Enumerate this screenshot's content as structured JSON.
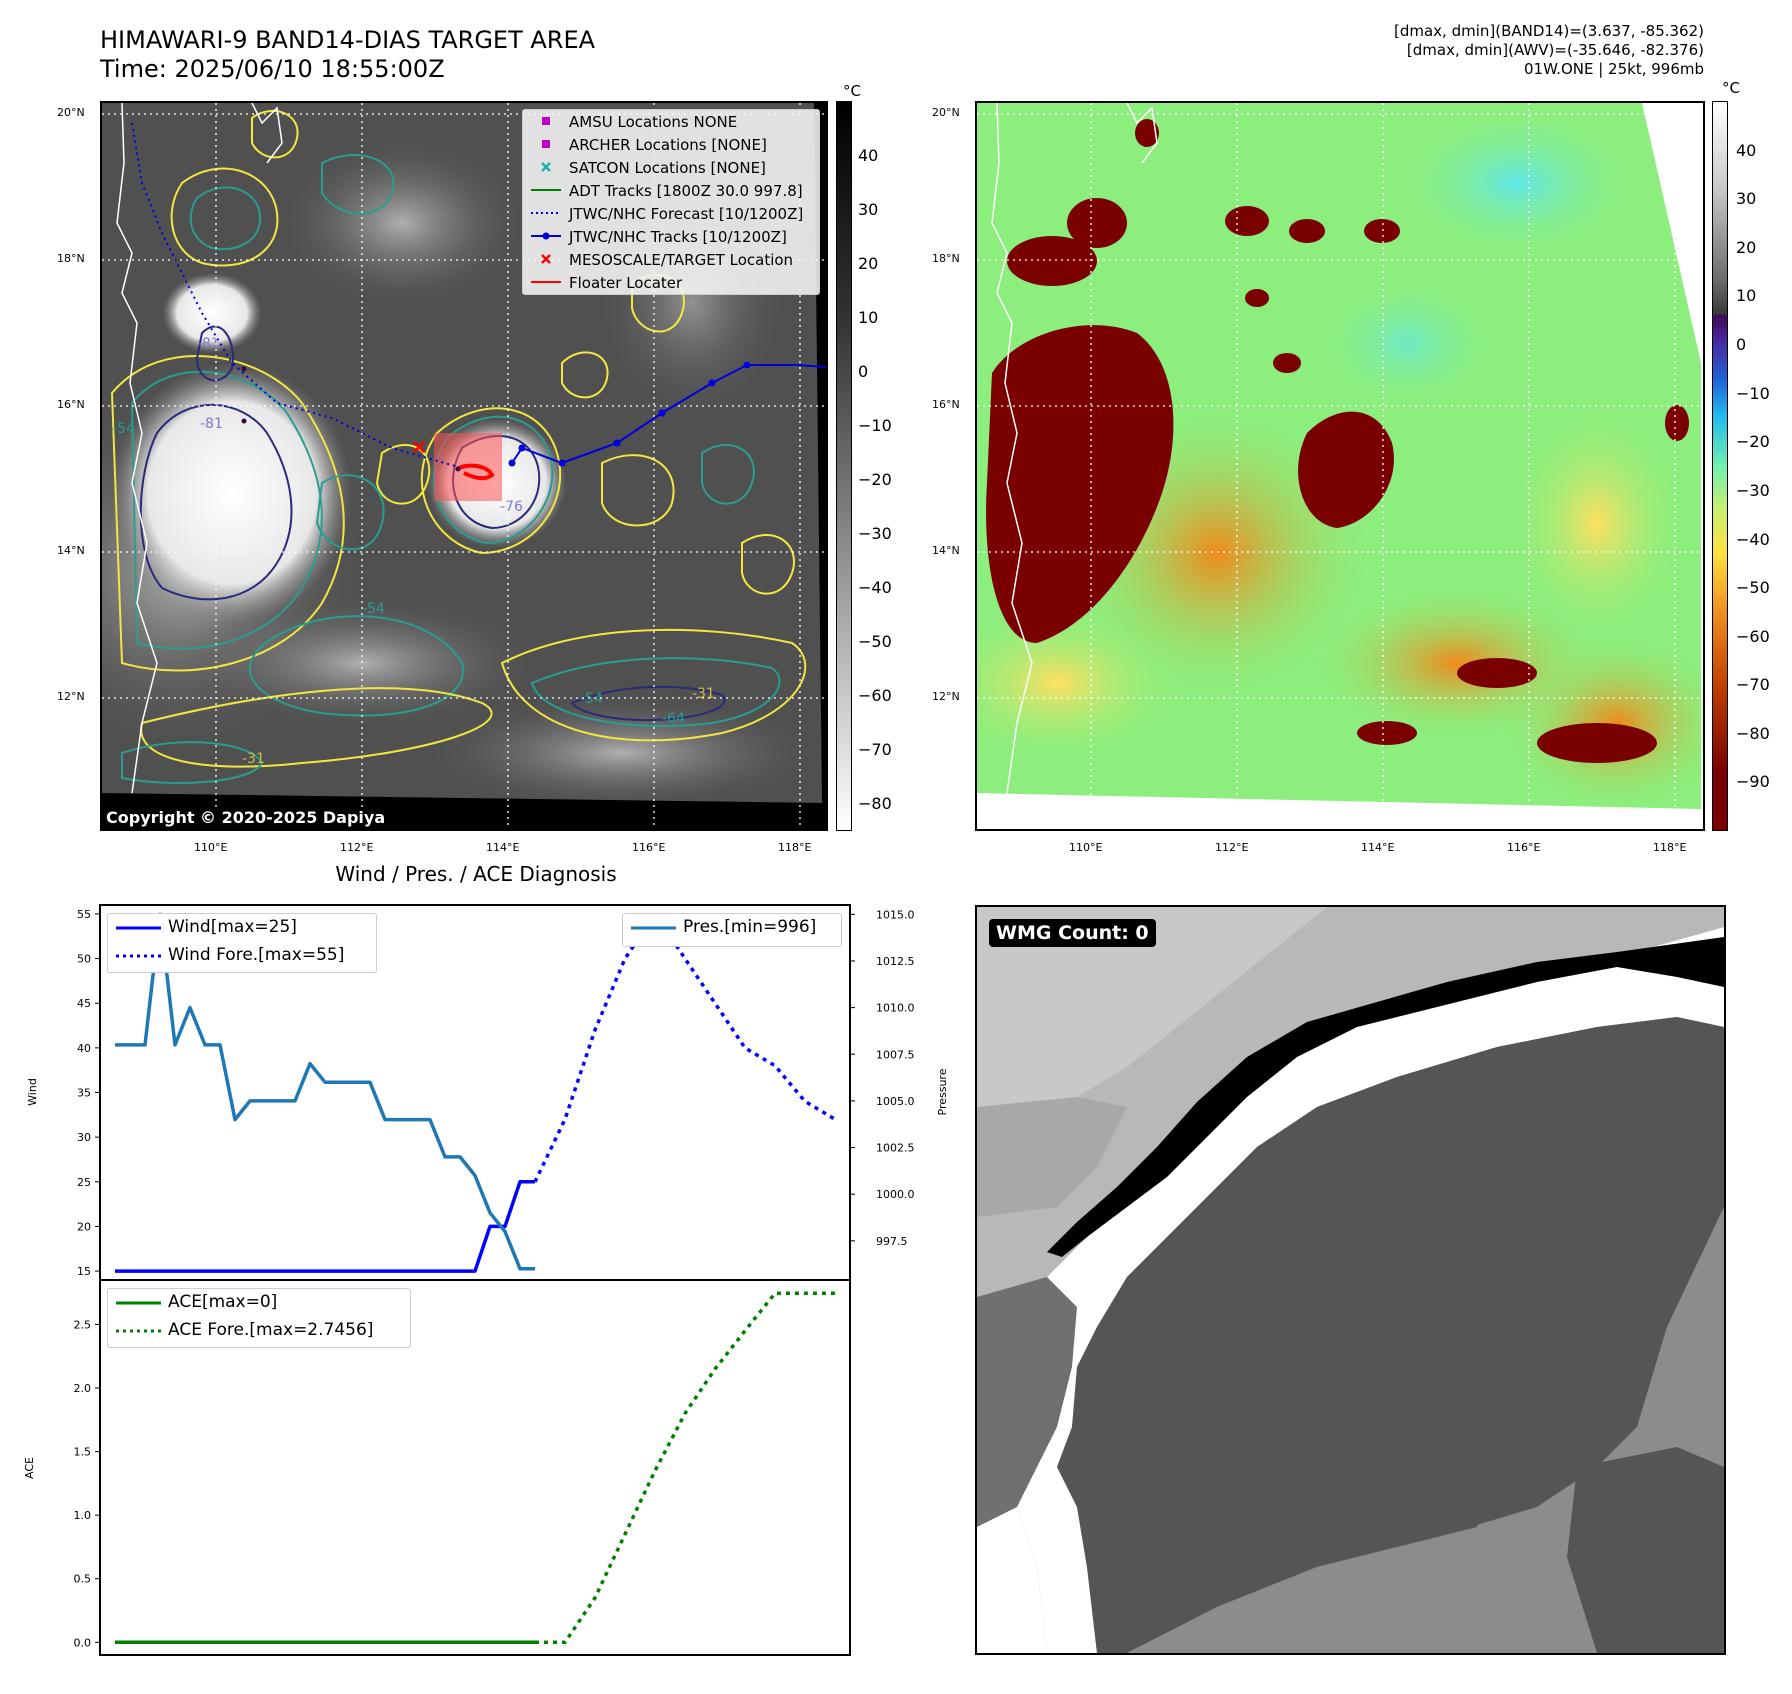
{
  "header": {
    "title_line1": "HIMAWARI-9 BAND14-DIAS TARGET AREA",
    "title_line2": "Time: 2025/06/10 18:55:00Z",
    "info_line1": "[dmax, dmin](BAND14)=(3.637, -85.362)",
    "info_line2": "[dmax, dmin](AWV)=(-35.646, -82.376)",
    "info_line3": "01W.ONE | 25kt, 996mb"
  },
  "maps": {
    "lat_ticks": [
      "20°N",
      "18°N",
      "16°N",
      "14°N",
      "12°N"
    ],
    "lon_ticks": [
      "110°E",
      "112°E",
      "114°E",
      "116°E",
      "118°E"
    ],
    "cbar_unit": "°C",
    "left_cbar_ticks": [
      "40",
      "30",
      "20",
      "10",
      "0",
      "−10",
      "−20",
      "−30",
      "−40",
      "−50",
      "−60",
      "−70",
      "−80"
    ],
    "right_cbar_ticks": [
      "40",
      "30",
      "20",
      "10",
      "0",
      "−10",
      "−20",
      "−30",
      "−40",
      "−50",
      "−60",
      "−70",
      "−80",
      "−90"
    ],
    "copyright": "Copyright © 2020-2025 Dapiya",
    "legend": [
      {
        "label": "AMSU Locations NONE",
        "marker": "square",
        "color": "#c000c0"
      },
      {
        "label": "ARCHER Locations [NONE]",
        "marker": "square",
        "color": "#c000c0"
      },
      {
        "label": "SATCON Locations [NONE]",
        "marker": "x",
        "color": "#20b0b0"
      },
      {
        "label": "ADT Tracks [1800Z 30.0 997.8]",
        "marker": "line",
        "color": "#008000"
      },
      {
        "label": "JTWC/NHC Forecast [10/1200Z]",
        "marker": "dotted",
        "color": "#0000dd"
      },
      {
        "label": "JTWC/NHC Tracks [10/1200Z]",
        "marker": "line-dot",
        "color": "#0000dd"
      },
      {
        "label": "MESOSCALE/TARGET Location",
        "marker": "x",
        "color": "#ff0000"
      },
      {
        "label": "Floater Locater",
        "marker": "line",
        "color": "#ff0000"
      }
    ],
    "contour_labels": [
      "-81",
      "-81",
      "-76",
      "-54",
      "-54",
      "-31",
      "-31",
      "-54",
      "-64"
    ],
    "colors": {
      "jtwc": "#0000dd",
      "target": "#ff0000",
      "contour_yellow": "#f2e640",
      "contour_teal": "#2a9d8f",
      "contour_navy": "#2b2a7a"
    }
  },
  "diagnosis": {
    "title": "Wind / Pres. / ACE Diagnosis",
    "wind_ylabel": "Wind",
    "pres_ylabel": "Pressure",
    "ace_ylabel": "ACE",
    "wind_legend": [
      "Wind[max=25]",
      "Wind Fore.[max=55]"
    ],
    "pres_legend": [
      "Pres.[min=996]"
    ],
    "ace_legend": [
      "ACE[max=0]",
      "ACE Fore.[max=2.7456]"
    ]
  },
  "chart_data": [
    {
      "type": "line",
      "title": "Wind / Pres. / ACE Diagnosis",
      "ylabel": "Wind",
      "ylim": [
        14,
        56
      ],
      "yticks": [
        15,
        20,
        25,
        30,
        35,
        40,
        45,
        50,
        55
      ],
      "xlim": [
        -1,
        49
      ],
      "series": [
        {
          "name": "Wind[max=25]",
          "style": "solid",
          "color": "#0000ff",
          "x": [
            0,
            24,
            25,
            26,
            27,
            28
          ],
          "y": [
            15,
            15,
            20,
            20,
            25,
            25
          ]
        },
        {
          "name": "Wind Fore.[max=55]",
          "style": "dotted",
          "color": "#0000ff",
          "x": [
            28,
            30,
            32,
            34,
            36,
            38,
            40,
            42,
            44,
            46,
            48
          ],
          "y": [
            25,
            32,
            42,
            50,
            55,
            50,
            45,
            40,
            38,
            34,
            32
          ]
        }
      ]
    },
    {
      "type": "line",
      "ylabel": "Pressure",
      "ylim": [
        995.4,
        1015.5
      ],
      "yticks": [
        997.5,
        1000.0,
        1002.5,
        1005.0,
        1007.5,
        1010.0,
        1012.5,
        1015.0
      ],
      "series": [
        {
          "name": "Pres.[min=996]",
          "style": "solid",
          "color": "#1f77b4",
          "x": [
            0,
            1,
            2,
            3,
            4,
            5,
            6,
            7,
            8,
            9,
            10,
            11,
            12,
            13,
            14,
            15,
            16,
            17,
            18,
            19,
            20,
            21,
            22,
            23,
            24,
            25,
            26,
            27,
            28
          ],
          "y": [
            1008,
            1008,
            1008,
            1015,
            1008,
            1010,
            1008,
            1008,
            1004,
            1005,
            1005,
            1005,
            1005,
            1007,
            1006,
            1006,
            1006,
            1006,
            1004,
            1004,
            1004,
            1004,
            1002,
            1002,
            1001,
            999,
            998,
            996,
            996
          ]
        }
      ]
    },
    {
      "type": "line",
      "ylabel": "ACE",
      "ylim": [
        -0.1,
        2.85
      ],
      "yticks": [
        0.0,
        0.5,
        1.0,
        1.5,
        2.0,
        2.5
      ],
      "series": [
        {
          "name": "ACE[max=0]",
          "style": "solid",
          "color": "#008000",
          "x": [
            0,
            28
          ],
          "y": [
            0,
            0
          ]
        },
        {
          "name": "ACE Fore.[max=2.7456]",
          "style": "dotted",
          "color": "#008000",
          "x": [
            28,
            30,
            32,
            34,
            36,
            38,
            40,
            42,
            44,
            46,
            48
          ],
          "y": [
            0,
            0,
            0.35,
            0.85,
            1.35,
            1.8,
            2.15,
            2.45,
            2.7456,
            2.7456,
            2.7456
          ]
        }
      ]
    }
  ],
  "wmg": {
    "label": "WMG Count: 0"
  }
}
